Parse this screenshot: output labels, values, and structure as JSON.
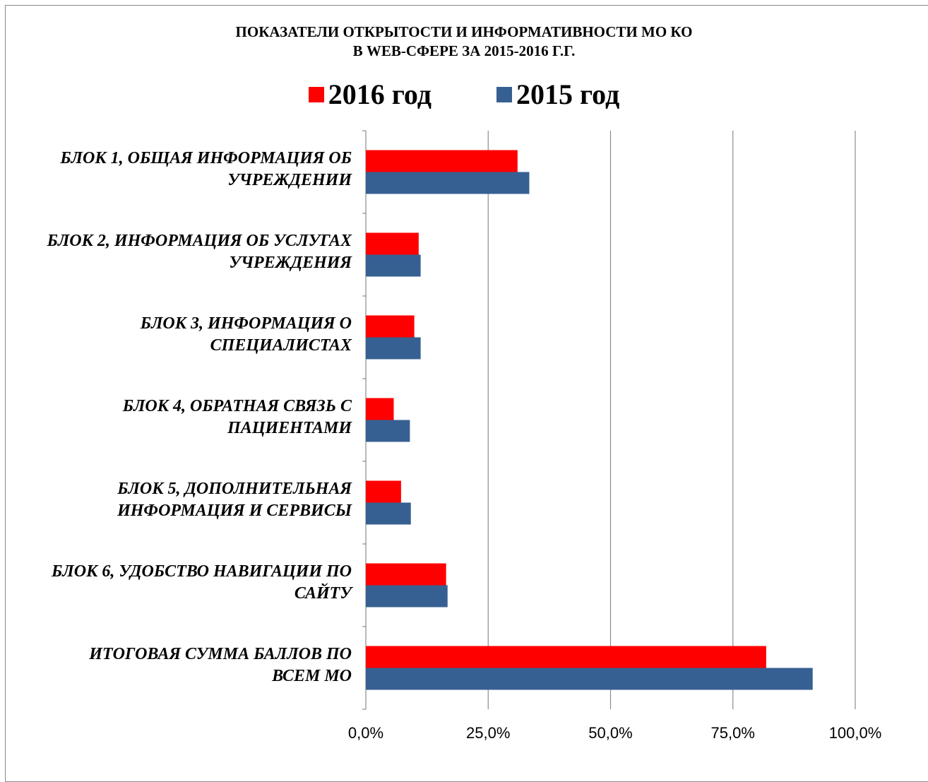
{
  "chart_data": {
    "type": "bar",
    "orientation": "horizontal",
    "title": [
      "ПОКАЗАТЕЛИ ОТКРЫТОСТИ И ИНФОРМАТИВНОСТИ МО КО",
      "В WEB-СФЕРЕ ЗА 2015-2016 Г.Г."
    ],
    "categories": [
      [
        "БЛОК 1, ОБЩАЯ ИНФОРМАЦИЯ ОБ",
        "УЧРЕЖДЕНИИ"
      ],
      [
        "БЛОК 2, ИНФОРМАЦИЯ ОБ УСЛУГАХ",
        "УЧРЕЖДЕНИЯ"
      ],
      [
        "БЛОК 3, ИНФОРМАЦИЯ О",
        "СПЕЦИАЛИСТАХ"
      ],
      [
        "БЛОК 4, ОБРАТНАЯ СВЯЗЬ С",
        "ПАЦИЕНТАМИ"
      ],
      [
        "БЛОК 5, ДОПОЛНИТЕЛЬНАЯ",
        "ИНФОРМАЦИЯ И СЕРВИСЫ"
      ],
      [
        "БЛОК 6, УДОБСТВО НАВИГАЦИИ ПО",
        "САЙТУ"
      ],
      [
        "ИТОГОВАЯ СУММА БАЛЛОВ ПО",
        "ВСЕМ МО"
      ]
    ],
    "series": [
      {
        "name": "2016 год",
        "color": "#ff0000",
        "values": [
          31.0,
          10.8,
          9.9,
          5.7,
          7.2,
          16.4,
          81.8
        ]
      },
      {
        "name": "2015 год",
        "color": "#376092",
        "values": [
          33.4,
          11.2,
          11.2,
          9.0,
          9.2,
          16.7,
          91.3
        ]
      }
    ],
    "xlim": [
      0,
      100
    ],
    "xticks": [
      "0,0%",
      "25,0%",
      "50,0%",
      "75,0%",
      "100,0%"
    ],
    "xlabel": "",
    "ylabel": "",
    "grid": "vertical",
    "legend": "top"
  }
}
